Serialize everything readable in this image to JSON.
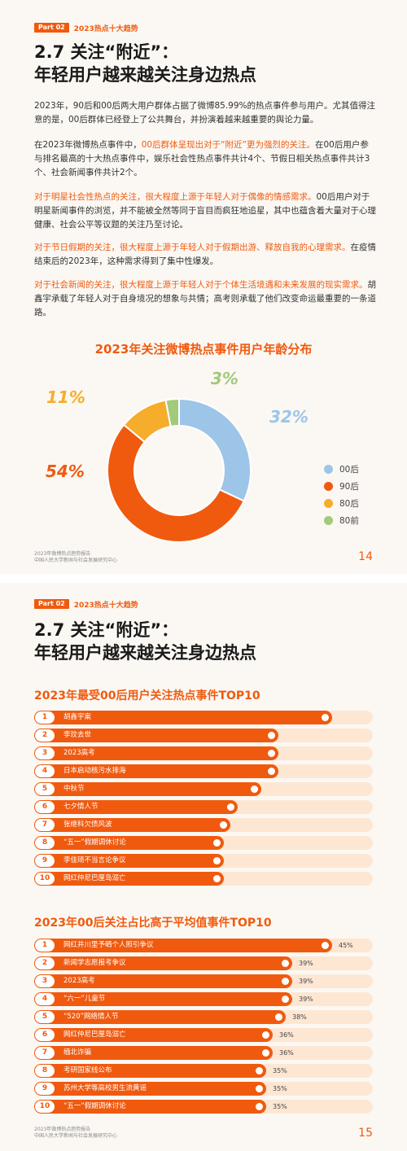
{
  "header": {
    "part": "Part 02",
    "section": "2023热点十大趋势"
  },
  "page14": {
    "title_line1": "2.7 关注“附近”：",
    "title_line2": "年轻用户越来越关注身边热点",
    "p1": "2023年，90后和00后两大用户群体占据了微博85.99%的热点事件参与用户。尤其值得注意的是，00后群体已经登上了公共舞台，并扮演着越来越重要的舆论力量。",
    "p2_pre": "在2023年微博热点事件中，",
    "p2_hl": "00后群体呈现出对于“附近”更为强烈的关注。",
    "p2_post": "在00后用户参与排名最高的十大热点事件中，娱乐社会性热点事件共计4个、节假日相关热点事件共计3个、社会新闻事件共计2个。",
    "p3_hl": "对于明星社会性热点的关注，很大程度上源于年轻人对于偶像的情感需求。",
    "p3_post": "00后用户对于明星新闻事件的浏览，并不能被全然等同于盲目而疯狂地追星，其中也蕴含着大量对于心理健康、社会公平等议题的关注乃至讨论。",
    "p4_hl": "对于节日假期的关注，很大程度上源于年轻人对于假期出游、释放自我的心理需求。",
    "p4_post": "在疫情结束后的2023年，这种需求得到了集中性爆发。",
    "p5_hl": "对于社会新闻的关注，很大程度上源于年轻人对于个体生活境遇和未来发展的现实需求。",
    "p5_post": "胡鑫宇承载了年轻人对于自身境况的想象与共情；高考则承载了他们改变命运最重要的一条道路。",
    "footer_line1": "2023年微博热点趋势报告",
    "footer_line2": "中国人民大学新闻与社会发展研究中心",
    "page_number": "14"
  },
  "chart_data": [
    {
      "type": "pie",
      "title": "2023年关注微博热点事件用户年龄分布",
      "categories": [
        "00后",
        "90后",
        "80后",
        "80前"
      ],
      "values": [
        32,
        54,
        11,
        3
      ],
      "value_labels": [
        "32%",
        "54%",
        "11%",
        "3%"
      ],
      "colors": [
        "#9cc5e8",
        "#f05a0f",
        "#f6ad2b",
        "#a3c97a"
      ],
      "legend": "right"
    },
    {
      "type": "bar",
      "title": "2023年最受00后用户关注热点事件TOP10",
      "ranks": [
        "1",
        "2",
        "3",
        "4",
        "5",
        "6",
        "7",
        "8",
        "9",
        "10"
      ],
      "categories": [
        "胡鑫宇案",
        "李玟去世",
        "2023高考",
        "日本启动核污水排海",
        "中秋节",
        "七夕情人节",
        "张继科欠债风波",
        "“五一”假期调休讨论",
        "李佳琦不当言论争议",
        "网红仲尼巴厘岛溺亡"
      ],
      "values": [
        0.88,
        0.72,
        0.72,
        0.72,
        0.67,
        0.6,
        0.58,
        0.56,
        0.56,
        0.56
      ]
    },
    {
      "type": "bar",
      "title": "2023年00后关注占比高于平均值事件TOP10",
      "ranks": [
        "1",
        "2",
        "3",
        "4",
        "5",
        "6",
        "7",
        "8",
        "9",
        "10"
      ],
      "categories": [
        "网红井川里予晒个人照引争议",
        "新闻学志愿报考争议",
        "2023高考",
        "“六一”儿童节",
        "“520”网络情人节",
        "网红仲尼巴厘岛溺亡",
        "缅北诈骗",
        "考研国家线公布",
        "苏州大学等高校男生流黄谣",
        "“五一”假期调休讨论"
      ],
      "values": [
        45,
        39,
        39,
        39,
        38,
        36,
        36,
        35,
        35,
        35
      ],
      "value_labels": [
        "45%",
        "39%",
        "39%",
        "39%",
        "38%",
        "36%",
        "36%",
        "35%",
        "35%",
        "35%"
      ]
    }
  ],
  "page15": {
    "title_line1": "2.7 关注“附近”：",
    "title_line2": "年轻用户越来越关注身边热点",
    "footer_line1": "2023年微博热点趋势报告",
    "footer_line2": "中国人民大学新闻与社会发展研究中心",
    "page_number": "15"
  }
}
